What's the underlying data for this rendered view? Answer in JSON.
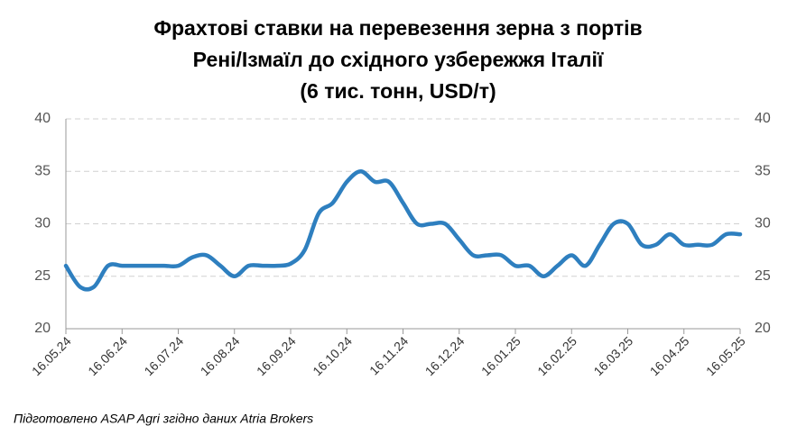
{
  "chart_data": {
    "type": "line",
    "title": [
      "Фрахтові ставки на перевезення зерна з портів",
      "Рені/Ізмаїл до східного узбережжя Італії",
      "(6 тис. тонн, USD/т)"
    ],
    "note": "Підготовлено ASAP Agri згідно даних Atria Brokers",
    "categories": [
      "16.05.24",
      null,
      null,
      null,
      "16.06.24",
      null,
      null,
      null,
      "16.07.24",
      null,
      null,
      null,
      "16.08.24",
      null,
      null,
      null,
      "16.09.24",
      null,
      null,
      null,
      "16.10.24",
      null,
      null,
      null,
      "16.11.24",
      null,
      null,
      null,
      "16.12.24",
      null,
      null,
      null,
      "16.01.25",
      null,
      null,
      null,
      "16.02.25",
      null,
      null,
      null,
      "16.03.25",
      null,
      null,
      null,
      "16.04.25",
      null,
      null,
      null,
      "16.05.25"
    ],
    "series": [
      {
        "color": "#2e7fbf",
        "values": [
          26,
          24,
          24,
          26,
          26,
          26,
          26,
          26,
          26,
          26.8,
          27,
          26,
          25,
          26,
          26,
          26,
          26.2,
          27.5,
          31,
          32,
          34,
          35,
          34,
          34,
          32,
          30,
          30,
          30,
          28.5,
          27,
          27,
          27,
          26,
          26,
          25,
          26,
          27,
          26,
          28,
          30,
          30,
          28,
          28,
          29,
          28,
          28,
          28,
          29,
          29
        ]
      }
    ],
    "ylim": [
      20,
      40
    ],
    "yticks": [
      20,
      25,
      30,
      35,
      40
    ],
    "y2lim": [
      20,
      40
    ],
    "y2ticks": [
      20,
      25,
      30,
      35,
      40
    ],
    "grid": true
  }
}
